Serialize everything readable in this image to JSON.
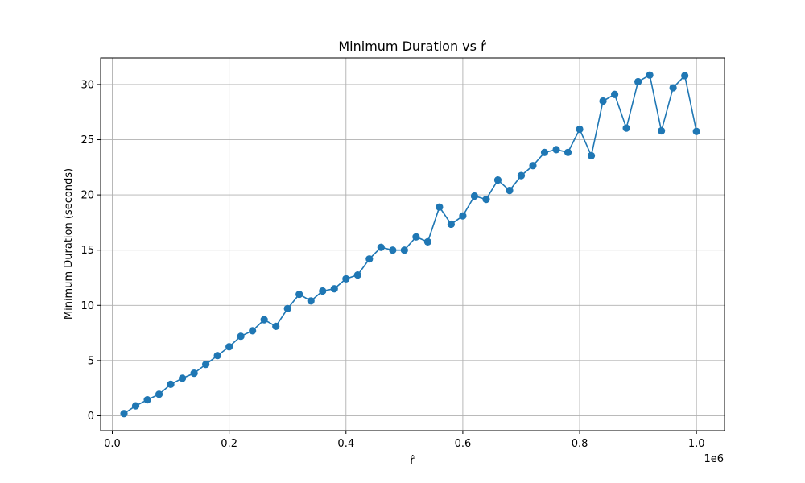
{
  "chart_data": {
    "type": "line",
    "title": "Minimum Duration vs r̂",
    "xlabel": "r̂",
    "ylabel": "Minimum Duration (seconds)",
    "x_scale_label": "1e6",
    "xlim": [
      -20000,
      1048000
    ],
    "ylim": [
      -1.35,
      32.4
    ],
    "x_ticks": [
      0,
      200000,
      400000,
      600000,
      800000,
      1000000
    ],
    "x_tick_labels": [
      "0.0",
      "0.2",
      "0.4",
      "0.6",
      "0.8",
      "1.0"
    ],
    "y_ticks": [
      0,
      5,
      10,
      15,
      20,
      25,
      30
    ],
    "y_tick_labels": [
      "0",
      "5",
      "10",
      "15",
      "20",
      "25",
      "30"
    ],
    "grid": true,
    "color": "#1f77b4",
    "series": [
      {
        "x": [
          20000,
          40000,
          60000,
          80000,
          100000,
          120000,
          140000,
          160000,
          180000,
          200000,
          220000,
          240000,
          260000,
          280000,
          300000,
          320000,
          340000,
          360000,
          380000,
          400000,
          420000,
          440000,
          460000,
          480000,
          500000,
          520000,
          540000,
          560000,
          580000,
          600000,
          620000,
          640000,
          660000,
          680000,
          700000,
          720000,
          740000,
          760000,
          780000,
          800000,
          820000,
          840000,
          860000,
          880000,
          900000,
          920000,
          940000,
          960000,
          980000,
          1000000
        ],
        "y": [
          0.2,
          0.9,
          1.45,
          1.95,
          2.85,
          3.4,
          3.85,
          4.65,
          5.45,
          6.25,
          7.2,
          7.7,
          8.7,
          8.1,
          9.7,
          11.0,
          10.4,
          11.3,
          11.5,
          12.4,
          12.75,
          14.2,
          15.25,
          15.0,
          15.0,
          16.2,
          15.75,
          18.9,
          17.35,
          18.1,
          19.9,
          19.6,
          21.35,
          20.4,
          21.75,
          22.65,
          23.85,
          24.1,
          23.85,
          25.95,
          23.55,
          28.5,
          29.1,
          26.05,
          30.25,
          30.85,
          25.8,
          29.7,
          30.8,
          25.75
        ]
      }
    ]
  }
}
